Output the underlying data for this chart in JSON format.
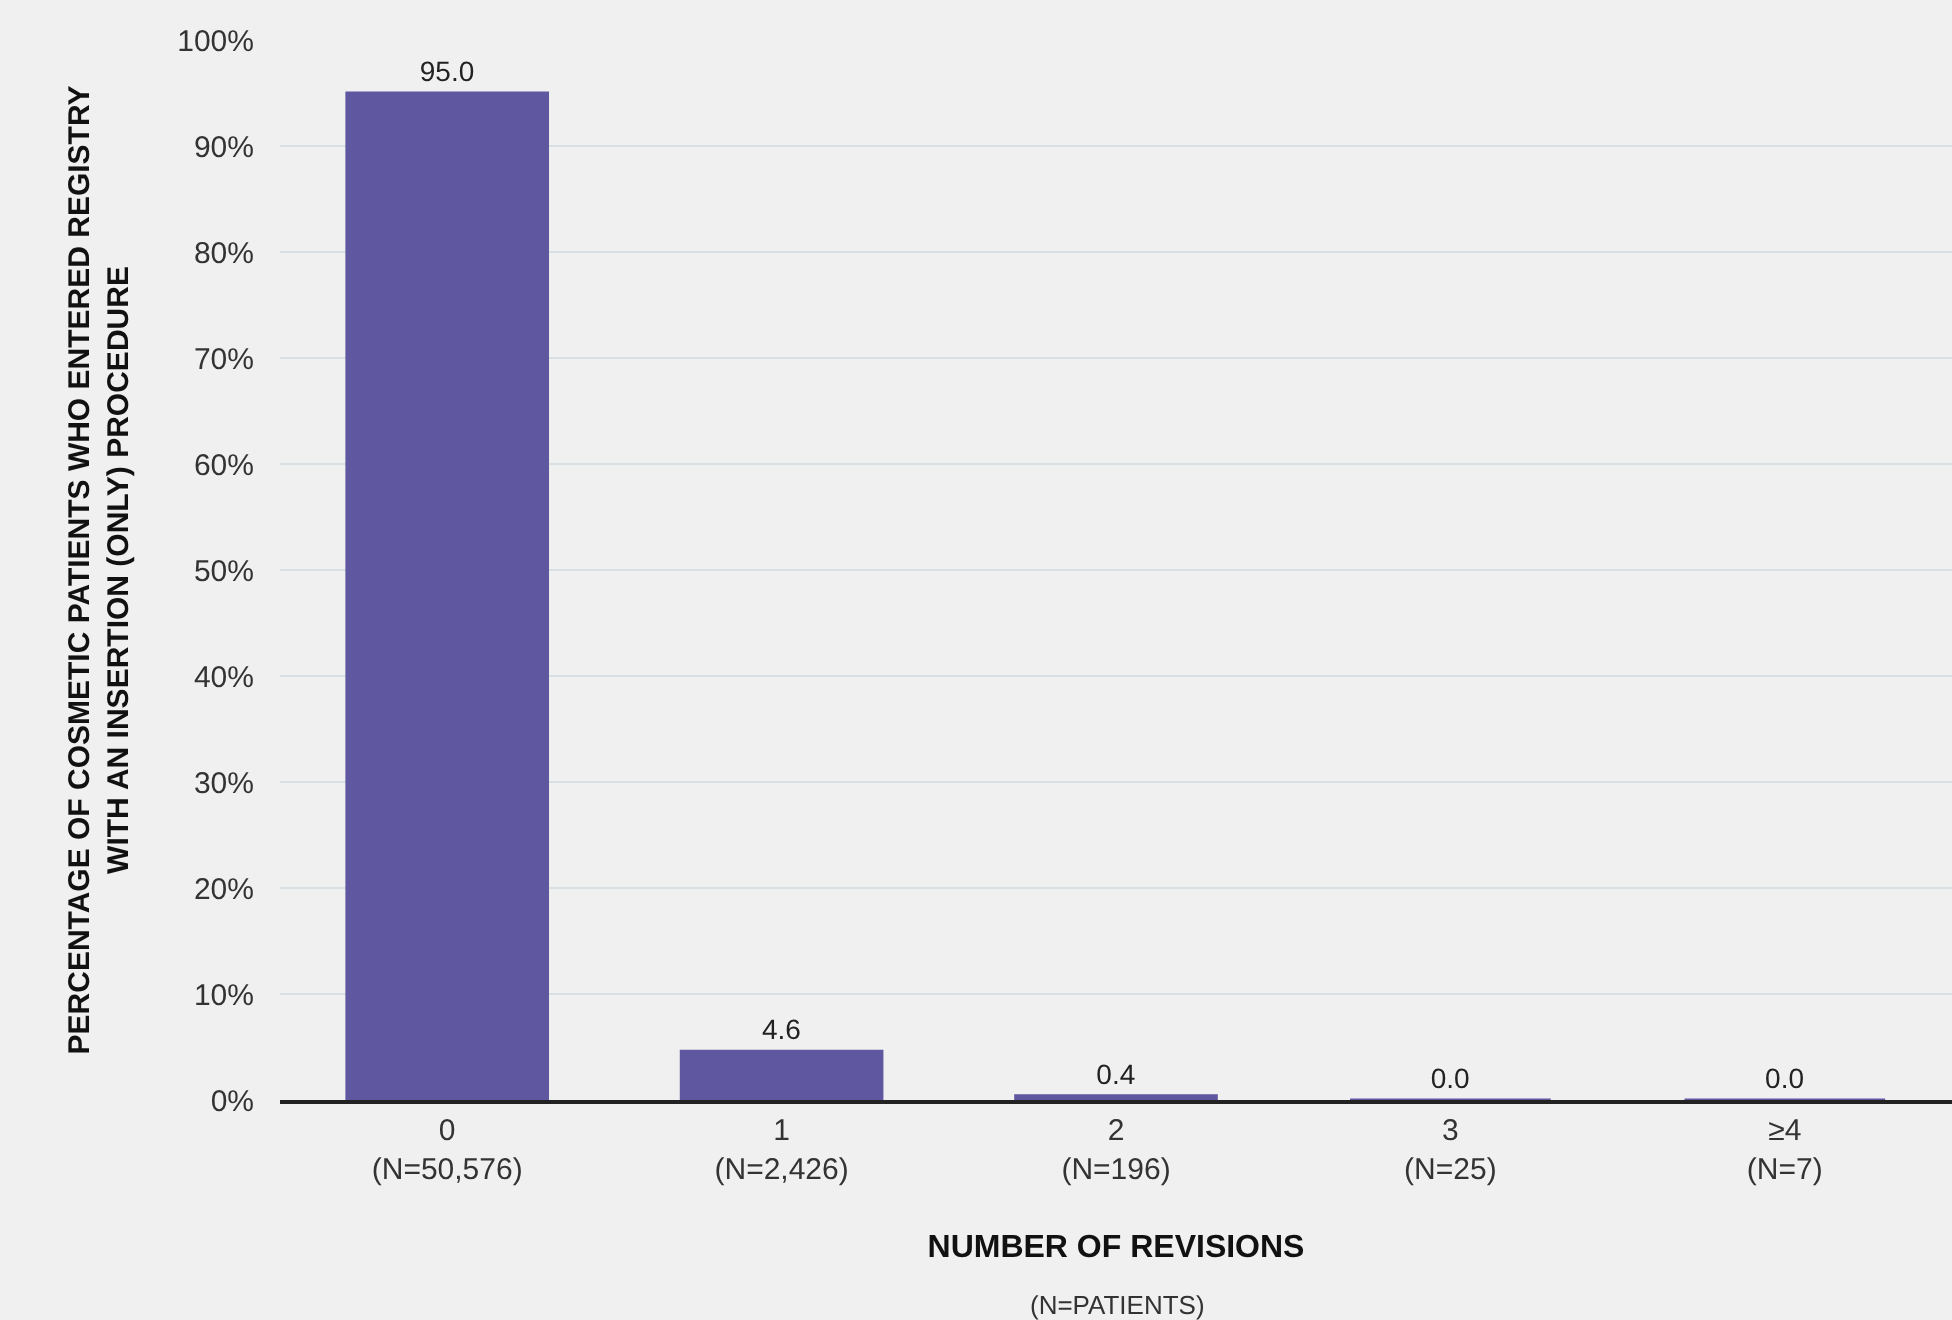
{
  "chart_data": {
    "type": "bar",
    "xlabel": "NUMBER OF REVISIONS",
    "ylabel": "PERCENTAGE OF COSMETIC PATIENTS WHO ENTERED REGISTRY\nWITH AN INSERTION (ONLY) PROCEDURE",
    "categories": [
      "0\n(N=50,576)",
      "1\n(N=2,426)",
      "2\n(N=196)",
      "3\n(N=25)",
      "≥4\n(N=7)"
    ],
    "values": [
      95.0,
      4.6,
      0.4,
      0.0,
      0.0
    ],
    "value_labels": [
      "95.0",
      "4.6",
      "0.4",
      "0.0",
      "0.0"
    ],
    "color": "#5f57a0",
    "ylim": [
      0,
      100
    ],
    "yticks": [
      {
        "value": 0,
        "label": "0%"
      },
      {
        "value": 10,
        "label": "10%"
      },
      {
        "value": 20,
        "label": "20%"
      },
      {
        "value": 30,
        "label": "30%"
      },
      {
        "value": 40,
        "label": "40%"
      },
      {
        "value": 50,
        "label": "50%"
      },
      {
        "value": 60,
        "label": "60%"
      },
      {
        "value": 70,
        "label": "70%"
      },
      {
        "value": 80,
        "label": "80%"
      },
      {
        "value": 90,
        "label": "90%"
      },
      {
        "value": 100,
        "label": "100%"
      }
    ],
    "grid": "y",
    "annotations": [
      "(N=PATIENTS)"
    ]
  }
}
